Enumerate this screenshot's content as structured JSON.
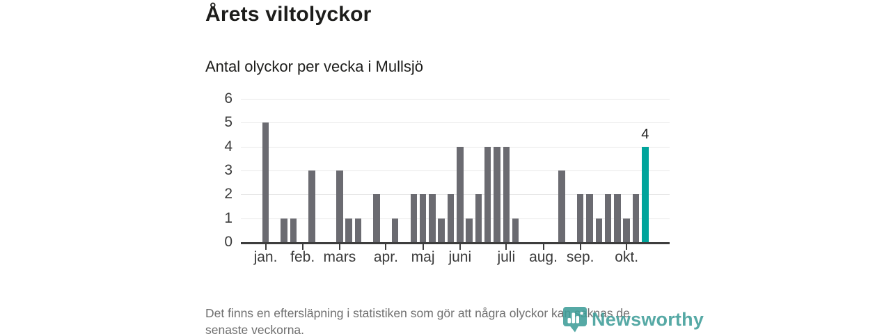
{
  "header": {
    "title": "Årets viltolyckor",
    "subtitle": "Antal olyckor per vecka i Mullsjö"
  },
  "chart_data": {
    "type": "bar",
    "title": "Årets viltolyckor",
    "subtitle": "Antal olyckor per vecka i Mullsjö",
    "x_unit": "week-of-year",
    "weeks_range": [
      1,
      42
    ],
    "values": [
      5,
      0,
      1,
      1,
      0,
      3,
      0,
      0,
      3,
      1,
      1,
      0,
      2,
      0,
      1,
      0,
      2,
      2,
      2,
      1,
      2,
      4,
      1,
      2,
      4,
      4,
      4,
      1,
      0,
      0,
      0,
      0,
      3,
      0,
      2,
      2,
      1,
      2,
      2,
      1,
      2,
      4
    ],
    "month_ticks": [
      {
        "week": 1,
        "label": "jan."
      },
      {
        "week": 5,
        "label": "feb."
      },
      {
        "week": 9,
        "label": "mars"
      },
      {
        "week": 14,
        "label": "apr."
      },
      {
        "week": 18,
        "label": "maj"
      },
      {
        "week": 22,
        "label": "juni"
      },
      {
        "week": 27,
        "label": "juli"
      },
      {
        "week": 31,
        "label": "aug."
      },
      {
        "week": 35,
        "label": "sep."
      },
      {
        "week": 40,
        "label": "okt."
      }
    ],
    "y_ticks": [
      0,
      1,
      2,
      3,
      4,
      5,
      6
    ],
    "ylim": [
      0,
      6
    ],
    "grid": "horizontal",
    "legend": "none",
    "last_bar": {
      "value": 4,
      "label": "4",
      "highlighted": true
    },
    "colors": {
      "bar": "#6b6b71",
      "highlight": "#00a49b"
    }
  },
  "footer": {
    "note_lines": [
      "Det finns en eftersläpning i statistiken som gör att några olyckor kan saknas de",
      "senaste veckorna."
    ],
    "brand": "Newsworthy"
  }
}
